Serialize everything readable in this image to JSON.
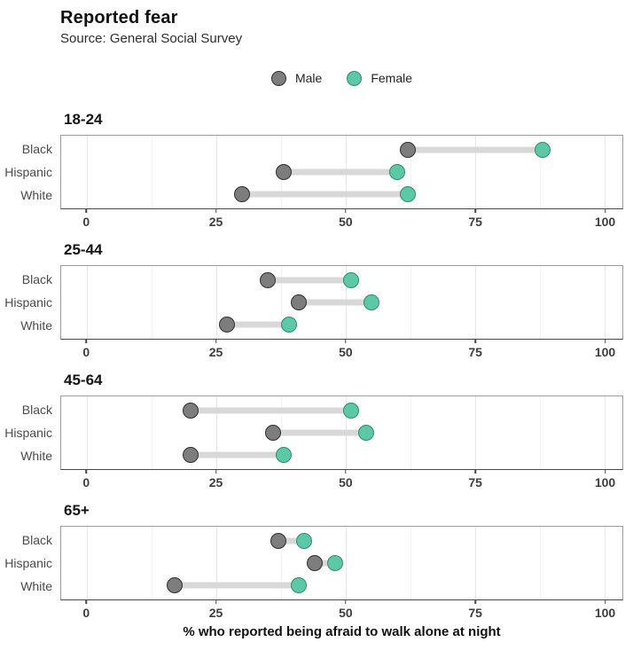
{
  "colors": {
    "male_fill": "#7d7d7d",
    "male_stroke": "#2f2f2f",
    "female_fill": "#5cc8a5",
    "female_stroke": "#2e8b6e",
    "connector": "#d8d8d8",
    "grid_major": "#e6e6e6",
    "grid_minor": "#f3f3f3"
  },
  "chart_data": {
    "type": "dumbbell",
    "title": "Reported fear",
    "subtitle": "Source: General Social Survey",
    "xlabel": "% who reported being afraid to walk alone at night",
    "x_ticks": [
      0,
      25,
      50,
      75,
      100
    ],
    "minor_ticks": [
      12.5,
      37.5,
      62.5,
      87.5
    ],
    "xlim": [
      -5,
      103.5
    ],
    "grid": "vertical-major-and-minor",
    "legend": [
      "Male",
      "Female"
    ],
    "legend_position": "top-center",
    "row_categories": [
      "Black",
      "Hispanic",
      "White"
    ],
    "panels": [
      {
        "age_group": "18-24",
        "rows": [
          {
            "category": "Black",
            "male": 62,
            "female": 88
          },
          {
            "category": "Hispanic",
            "male": 38,
            "female": 60
          },
          {
            "category": "White",
            "male": 30,
            "female": 62
          }
        ]
      },
      {
        "age_group": "25-44",
        "rows": [
          {
            "category": "Black",
            "male": 35,
            "female": 51
          },
          {
            "category": "Hispanic",
            "male": 41,
            "female": 55
          },
          {
            "category": "White",
            "male": 27,
            "female": 39
          }
        ]
      },
      {
        "age_group": "45-64",
        "rows": [
          {
            "category": "Black",
            "male": 20,
            "female": 51
          },
          {
            "category": "Hispanic",
            "male": 36,
            "female": 54
          },
          {
            "category": "White",
            "male": 20,
            "female": 38
          }
        ]
      },
      {
        "age_group": "65+",
        "rows": [
          {
            "category": "Black",
            "male": 37,
            "female": 42
          },
          {
            "category": "Hispanic",
            "male": 44,
            "female": 48
          },
          {
            "category": "White",
            "male": 17,
            "female": 41
          }
        ]
      }
    ]
  }
}
